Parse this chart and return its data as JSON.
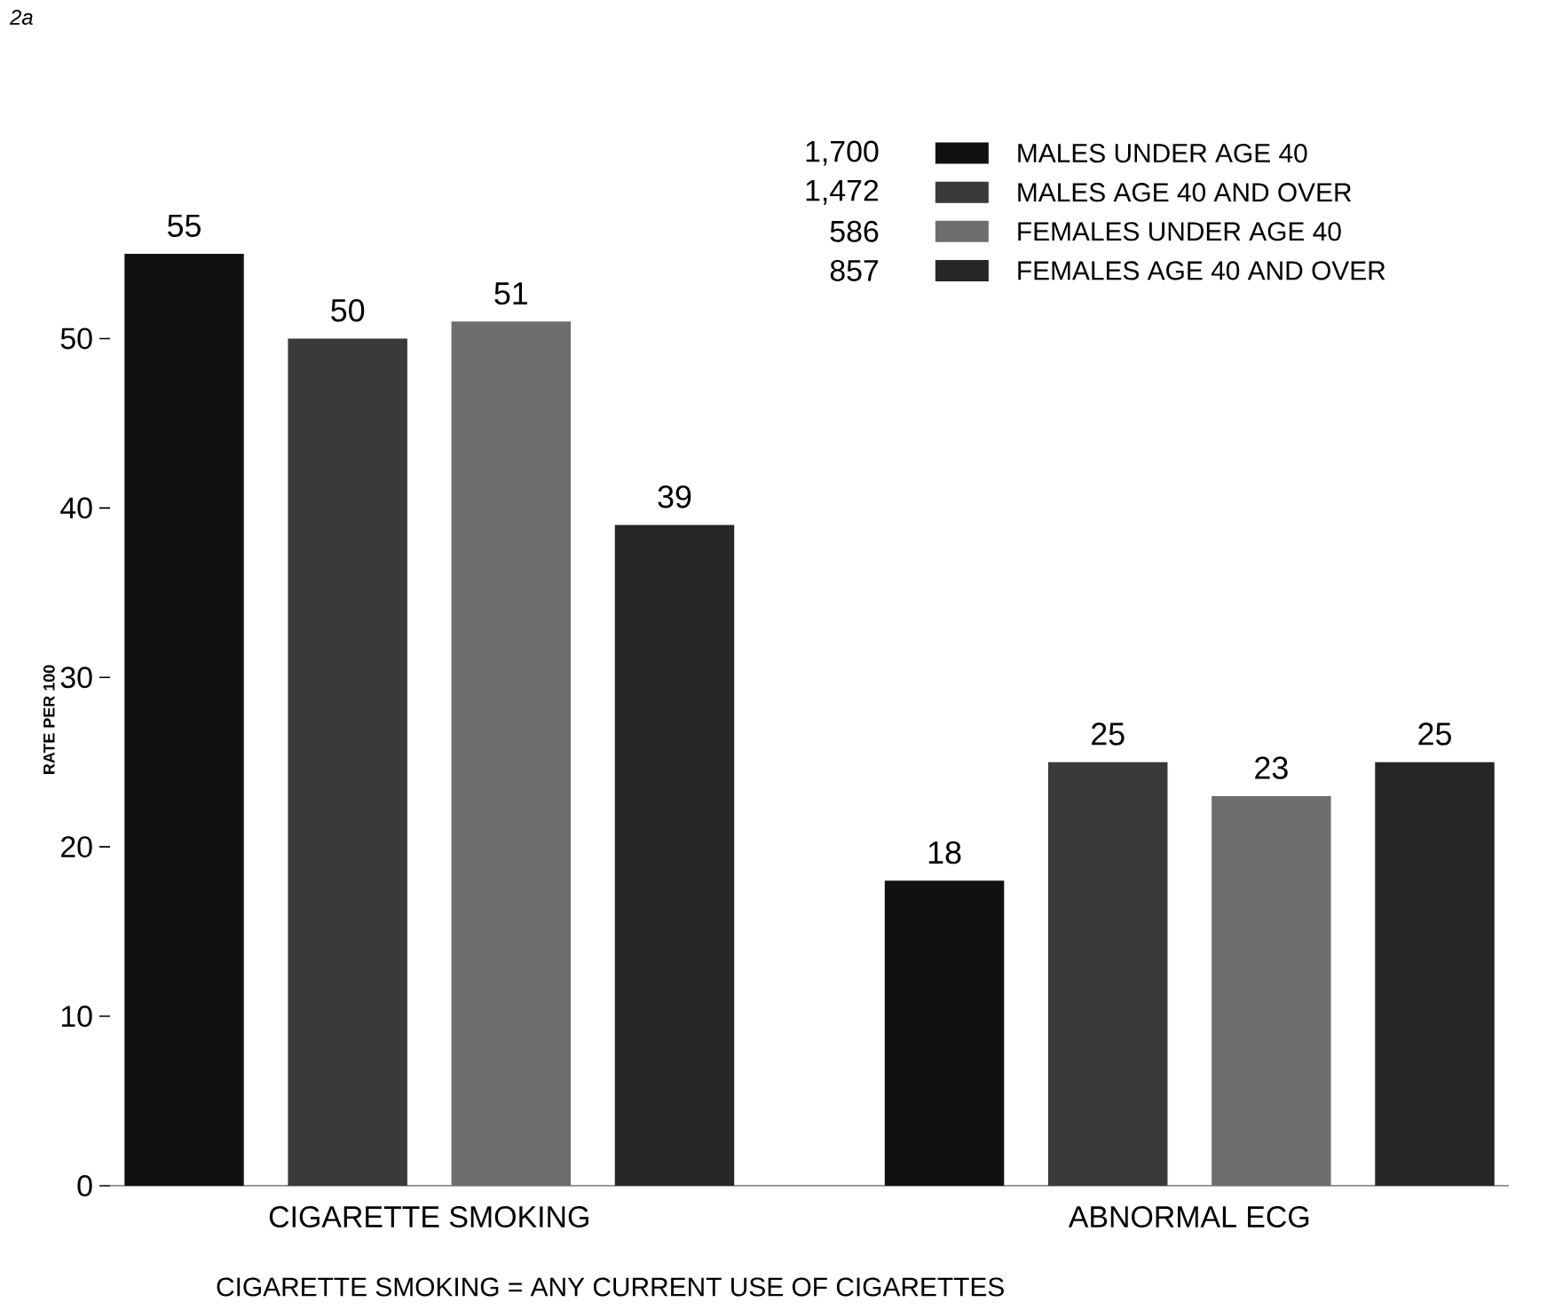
{
  "chart_data": {
    "type": "bar",
    "categories": [
      "CIGARETTE SMOKING",
      "ABNORMAL ECG"
    ],
    "ylabel": "RATE PER 100",
    "series": [
      {
        "name": "MALES UNDER AGE 40",
        "color": "#111111",
        "values": [
          55,
          18
        ]
      },
      {
        "name": "MALES AGE 40 AND OVER",
        "color": "#3a3a3a",
        "values": [
          50,
          25
        ]
      },
      {
        "name": "FEMALES UNDER AGE 40",
        "color": "#6e6e6e",
        "values": [
          51,
          23
        ]
      },
      {
        "name": "FEMALES AGE 40 AND OVER",
        "color": "#262626",
        "values": [
          39,
          25
        ]
      }
    ],
    "ylim": [
      0,
      55
    ],
    "yticks": [
      0,
      10,
      20,
      30,
      40,
      50
    ],
    "data_labels": true,
    "legend": "top right",
    "grid": false,
    "annotations": [
      "1,700",
      "1,472",
      "586",
      "857",
      "2a",
      "CIGARETTE SMOKING = ANY CURRENT USE OF CIGARETTES"
    ]
  }
}
